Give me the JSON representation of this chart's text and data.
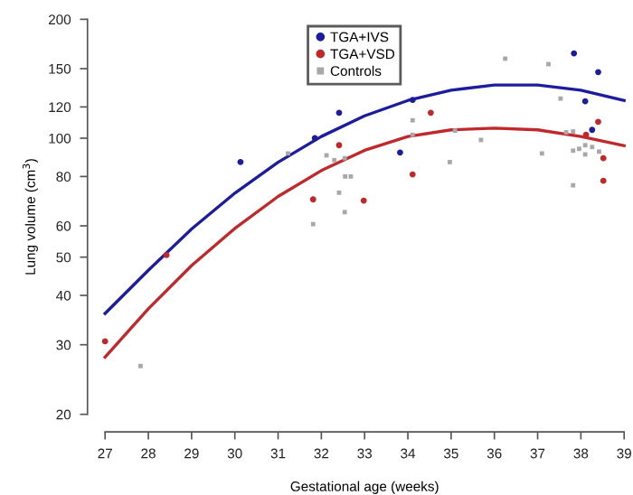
{
  "chart_data": {
    "type": "scatter",
    "xlabel": "Gestational age (weeks)",
    "ylabel": "Lung volume (cm$^{3}$)",
    "log": "y",
    "xlim": [
      27,
      39
    ],
    "xticks": [
      27,
      28,
      29,
      30,
      31,
      32,
      33,
      34,
      35,
      36,
      37,
      38,
      39
    ],
    "ylim": [
      20,
      200
    ],
    "yticks": [
      20,
      30,
      40,
      50,
      60,
      80,
      100,
      120,
      150,
      200
    ],
    "grid": false,
    "legend": "top",
    "marker": "circle",
    "series": [
      {
        "name": "TGA+IVS",
        "color": "#1c1c9c",
        "x": [
          30.13,
          31.85,
          32.41,
          34.11,
          33.82,
          37.84,
          38.4,
          38.1,
          38.26
        ],
        "values": [
          87,
          100,
          116,
          125,
          92,
          164,
          147,
          124,
          105
        ]
      },
      {
        "name": "TGA+VSD",
        "color": "#c0282c",
        "x": [
          27.0,
          28.42,
          31.81,
          32.41,
          34.53,
          34.11,
          32.98,
          38.4,
          38.12,
          38.52,
          38.52
        ],
        "values": [
          30.6,
          50.6,
          70,
          96,
          116,
          81,
          69.5,
          110,
          102,
          89,
          78
        ]
      },
      {
        "name": "Controls",
        "color": "#a8a8a8",
        "marker": "square",
        "x": [
          27.82,
          31.23,
          31.81,
          36.25,
          37.25,
          37.53,
          32.12,
          32.3,
          32.54,
          32.55,
          32.68,
          32.41,
          32.54,
          34.11,
          34.11,
          35.09,
          34.97,
          35.69,
          37.1,
          37.66,
          37.82,
          37.82,
          37.96,
          38.1,
          38.1,
          38.26,
          37.82,
          38.42
        ],
        "values": [
          26.5,
          91.5,
          60.6,
          159,
          154,
          126,
          90.5,
          88,
          89,
          80,
          80,
          72.8,
          65,
          111,
          102,
          104.5,
          87,
          99,
          91.5,
          103.5,
          104,
          93,
          94,
          96,
          91,
          95,
          76,
          92.5
        ]
      },
      {
        "type": "line",
        "color": "#1c1c9c",
        "marker": "none",
        "x": [
          27,
          28,
          29,
          30,
          31,
          32,
          33,
          34,
          35,
          36,
          37,
          38,
          39
        ],
        "values": [
          36,
          46.3,
          58.9,
          72.6,
          86.9,
          101,
          113.9,
          124.6,
          132.3,
          136.3,
          136.3,
          132.3,
          124.6
        ]
      },
      {
        "type": "line",
        "color": "#c0282c",
        "marker": "none",
        "x": [
          27,
          28,
          29,
          30,
          31,
          32,
          33,
          34,
          35,
          36,
          37,
          38,
          39
        ],
        "values": [
          27.9,
          37,
          47.6,
          59.1,
          71.2,
          82.8,
          93.2,
          101,
          105,
          106,
          105,
          101,
          95.7
        ]
      }
    ]
  }
}
